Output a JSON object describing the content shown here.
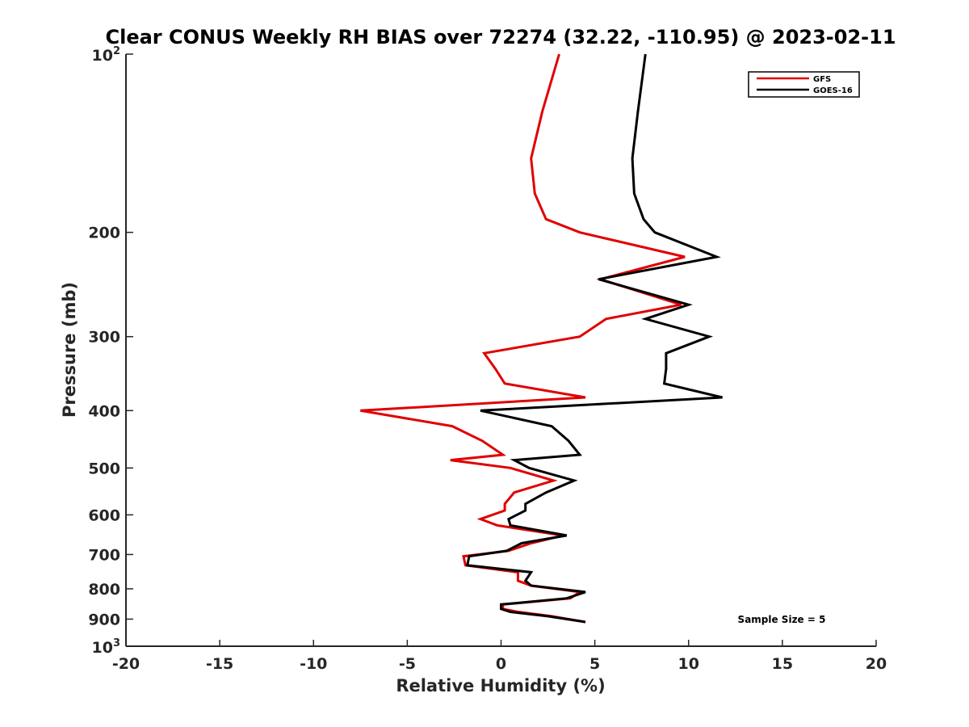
{
  "chart_data": {
    "type": "line",
    "title": "Clear CONUS Weekly RH BIAS over 72274 (32.22, -110.95) @ 2023-02-11",
    "xlabel": "Relative Humidity (%)",
    "ylabel": "Pressure (mb)",
    "xlim": [
      -20,
      20
    ],
    "ylim": [
      100,
      1000
    ],
    "y_scale": "log",
    "y_reversed": true,
    "x_ticks": [
      "-20",
      "-15",
      "-10",
      "-5",
      "0",
      "5",
      "10",
      "15",
      "20"
    ],
    "y_tick_labels": {
      "top": {
        "base": "10",
        "exp": "2"
      },
      "bottom": {
        "base": "10",
        "exp": "3"
      },
      "middle": [
        "200",
        "300",
        "400",
        "500",
        "600",
        "700",
        "800",
        "900"
      ]
    },
    "legend_position": "top-right",
    "annotation": "Sample Size = 5",
    "series": [
      {
        "name": "GFS",
        "color": "#e00000",
        "points": [
          [
            3.1,
            100
          ],
          [
            2.2,
            125
          ],
          [
            1.6,
            150
          ],
          [
            1.8,
            172
          ],
          [
            2.4,
            190
          ],
          [
            4.2,
            200
          ],
          [
            9.8,
            220
          ],
          [
            5.3,
            240
          ],
          [
            9.6,
            265
          ],
          [
            5.6,
            280
          ],
          [
            4.2,
            300
          ],
          [
            -0.9,
            320
          ],
          [
            -0.3,
            340
          ],
          [
            0.2,
            360
          ],
          [
            4.5,
            380
          ],
          [
            -7.5,
            400
          ],
          [
            -2.6,
            425
          ],
          [
            -1.0,
            450
          ],
          [
            0.1,
            475
          ],
          [
            -2.7,
            485
          ],
          [
            0.5,
            500
          ],
          [
            2.8,
            525
          ],
          [
            0.7,
            550
          ],
          [
            0.2,
            575
          ],
          [
            0.2,
            590
          ],
          [
            -1.1,
            610
          ],
          [
            -0.2,
            625
          ],
          [
            3.3,
            650
          ],
          [
            1.6,
            670
          ],
          [
            0.4,
            690
          ],
          [
            -2.0,
            705
          ],
          [
            -1.9,
            730
          ],
          [
            0.9,
            750
          ],
          [
            0.9,
            775
          ],
          [
            1.6,
            790
          ],
          [
            4.2,
            810
          ],
          [
            3.7,
            830
          ],
          [
            0.1,
            850
          ],
          [
            0.1,
            865
          ],
          [
            0.9,
            875
          ],
          [
            2.7,
            890
          ],
          [
            4.5,
            910
          ]
        ]
      },
      {
        "name": "GOES-16",
        "color": "#000000",
        "points": [
          [
            7.7,
            100
          ],
          [
            7.3,
            125
          ],
          [
            7.0,
            150
          ],
          [
            7.1,
            172
          ],
          [
            7.6,
            190
          ],
          [
            8.2,
            200
          ],
          [
            11.5,
            220
          ],
          [
            5.2,
            240
          ],
          [
            10.0,
            265
          ],
          [
            7.7,
            280
          ],
          [
            11.1,
            300
          ],
          [
            8.8,
            320
          ],
          [
            8.8,
            340
          ],
          [
            8.7,
            360
          ],
          [
            11.8,
            380
          ],
          [
            -1.1,
            400
          ],
          [
            2.7,
            425
          ],
          [
            3.6,
            450
          ],
          [
            4.2,
            475
          ],
          [
            0.7,
            485
          ],
          [
            1.5,
            500
          ],
          [
            3.9,
            525
          ],
          [
            2.4,
            550
          ],
          [
            1.3,
            575
          ],
          [
            1.3,
            590
          ],
          [
            0.4,
            610
          ],
          [
            0.5,
            625
          ],
          [
            3.5,
            650
          ],
          [
            1.1,
            670
          ],
          [
            0.3,
            690
          ],
          [
            -1.7,
            705
          ],
          [
            -1.8,
            730
          ],
          [
            1.6,
            750
          ],
          [
            1.3,
            775
          ],
          [
            1.6,
            790
          ],
          [
            4.5,
            810
          ],
          [
            3.5,
            830
          ],
          [
            0.0,
            850
          ],
          [
            0.0,
            865
          ],
          [
            0.5,
            875
          ],
          [
            2.5,
            890
          ],
          [
            4.5,
            910
          ]
        ]
      }
    ]
  }
}
